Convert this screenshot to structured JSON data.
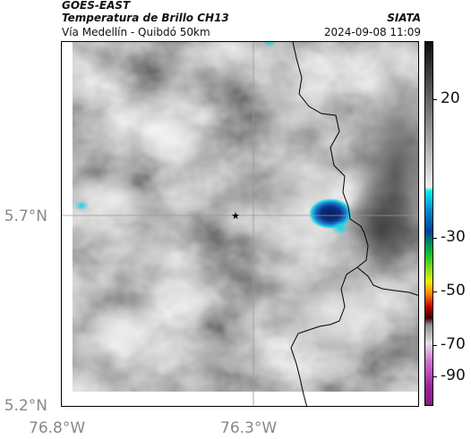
{
  "header": {
    "satellite": "GOES-EAST",
    "product": "Temperatura de Brillo CH13",
    "region": "Vía Medellín - Quibdó 50km",
    "organization": "SIATA",
    "datetime": "2024-09-08 11:09"
  },
  "axes": {
    "lat_ticks": [
      "5.7°N",
      "5.2°N"
    ],
    "lon_ticks": [
      "76.8°W",
      "76.3°W"
    ]
  },
  "colorbar": {
    "ticks": [
      "20",
      "-30",
      "-50",
      "-70",
      "-90"
    ]
  },
  "colors": {
    "cloud_gray": "#8a8a8a",
    "cold_core": "#0a2f80",
    "cold_edge": "#19d3e6",
    "border_line": "#000000"
  }
}
